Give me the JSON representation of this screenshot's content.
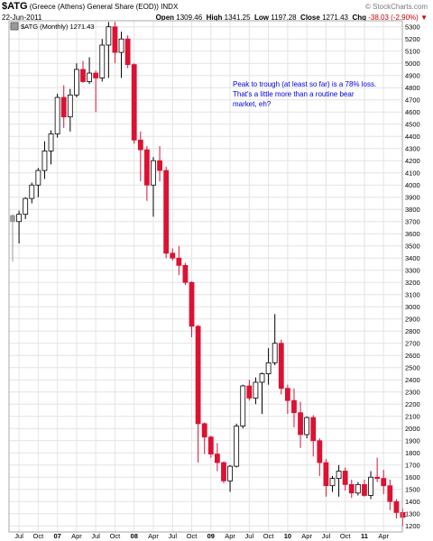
{
  "header": {
    "symbol": "$ATG",
    "name": "(Greece (Athens) General Share (EOD))",
    "exchange": "INDX",
    "date": "22-Jun-2011",
    "brand": "© StockCharts.com",
    "open_label": "Open",
    "open": "1309.46",
    "high_label": "High",
    "high": "1341.25",
    "low_label": "Low",
    "low": "1197.28",
    "close_label": "Close",
    "close": "1271.43",
    "chg_label": "Chg",
    "chg": "-38.03 (-2.90%)"
  },
  "legend": {
    "text": "$ATG (Monthly) 1271.43"
  },
  "annotation": {
    "lines": [
      "Peak to trough (at least so far) is a 78% loss.",
      "That's a little more than a routine bear",
      "market, eh?"
    ]
  },
  "chart_data": {
    "type": "candlestick",
    "title": "$ATG (Monthly) 1271.43",
    "ylim": [
      1150,
      5350
    ],
    "y_ticks": [
      1200,
      1300,
      1400,
      1500,
      1600,
      1700,
      1800,
      1900,
      2000,
      2100,
      2200,
      2300,
      2400,
      2500,
      2600,
      2700,
      2800,
      2900,
      3000,
      3100,
      3200,
      3300,
      3400,
      3500,
      3600,
      3700,
      3800,
      3900,
      4000,
      4100,
      4200,
      4300,
      4400,
      4500,
      4600,
      4700,
      4800,
      4900,
      5000,
      5100,
      5200,
      5300
    ],
    "x_ticks": [
      {
        "i": 1,
        "label": "Jul",
        "bold": false
      },
      {
        "i": 4,
        "label": "Oct",
        "bold": false
      },
      {
        "i": 7,
        "label": "07",
        "bold": true
      },
      {
        "i": 10,
        "label": "Apr",
        "bold": false
      },
      {
        "i": 13,
        "label": "Jul",
        "bold": false
      },
      {
        "i": 16,
        "label": "Oct",
        "bold": false
      },
      {
        "i": 19,
        "label": "08",
        "bold": true
      },
      {
        "i": 22,
        "label": "Apr",
        "bold": false
      },
      {
        "i": 25,
        "label": "Jul",
        "bold": false
      },
      {
        "i": 28,
        "label": "Oct",
        "bold": false
      },
      {
        "i": 31,
        "label": "09",
        "bold": true
      },
      {
        "i": 34,
        "label": "Apr",
        "bold": false
      },
      {
        "i": 37,
        "label": "Jul",
        "bold": false
      },
      {
        "i": 40,
        "label": "Oct",
        "bold": false
      },
      {
        "i": 43,
        "label": "10",
        "bold": true
      },
      {
        "i": 46,
        "label": "Apr",
        "bold": false
      },
      {
        "i": 49,
        "label": "Jul",
        "bold": false
      },
      {
        "i": 52,
        "label": "Oct",
        "bold": false
      },
      {
        "i": 55,
        "label": "11",
        "bold": true
      },
      {
        "i": 58,
        "label": "Apr",
        "bold": false
      }
    ],
    "candles": [
      {
        "o": 3750,
        "h": 3760,
        "l": 3370,
        "c": 3700,
        "dir": "gray"
      },
      {
        "o": 3700,
        "h": 3790,
        "l": 3520,
        "c": 3760,
        "dir": "up"
      },
      {
        "o": 3760,
        "h": 3900,
        "l": 3720,
        "c": 3890,
        "dir": "up"
      },
      {
        "o": 3890,
        "h": 4020,
        "l": 3850,
        "c": 4000,
        "dir": "up"
      },
      {
        "o": 4000,
        "h": 4140,
        "l": 3900,
        "c": 4120,
        "dir": "up"
      },
      {
        "o": 4120,
        "h": 4360,
        "l": 4050,
        "c": 4280,
        "dir": "up"
      },
      {
        "o": 4280,
        "h": 4450,
        "l": 4170,
        "c": 4420,
        "dir": "up"
      },
      {
        "o": 4420,
        "h": 4750,
        "l": 4390,
        "c": 4720,
        "dir": "up"
      },
      {
        "o": 4720,
        "h": 4820,
        "l": 4470,
        "c": 4560,
        "dir": "down"
      },
      {
        "o": 4560,
        "h": 4790,
        "l": 4440,
        "c": 4740,
        "dir": "up"
      },
      {
        "o": 4740,
        "h": 5000,
        "l": 4720,
        "c": 4950,
        "dir": "up"
      },
      {
        "o": 4950,
        "h": 5020,
        "l": 4840,
        "c": 4850,
        "dir": "down"
      },
      {
        "o": 4850,
        "h": 5050,
        "l": 4830,
        "c": 4920,
        "dir": "up"
      },
      {
        "o": 4920,
        "h": 4940,
        "l": 4600,
        "c": 4880,
        "dir": "down"
      },
      {
        "o": 4880,
        "h": 5200,
        "l": 4850,
        "c": 5150,
        "dir": "up"
      },
      {
        "o": 5150,
        "h": 5340,
        "l": 4880,
        "c": 5300,
        "dir": "up"
      },
      {
        "o": 5300,
        "h": 5340,
        "l": 5000,
        "c": 5090,
        "dir": "down"
      },
      {
        "o": 5090,
        "h": 5260,
        "l": 4880,
        "c": 5200,
        "dir": "up"
      },
      {
        "o": 5200,
        "h": 5230,
        "l": 4960,
        "c": 4990,
        "dir": "down"
      },
      {
        "o": 4990,
        "h": 5000,
        "l": 4340,
        "c": 4370,
        "dir": "down"
      },
      {
        "o": 4370,
        "h": 4440,
        "l": 4030,
        "c": 4290,
        "dir": "down"
      },
      {
        "o": 4290,
        "h": 4320,
        "l": 3870,
        "c": 4000,
        "dir": "down"
      },
      {
        "o": 4000,
        "h": 4230,
        "l": 3740,
        "c": 4200,
        "dir": "up"
      },
      {
        "o": 4200,
        "h": 4320,
        "l": 4030,
        "c": 4120,
        "dir": "down"
      },
      {
        "o": 4120,
        "h": 4150,
        "l": 3400,
        "c": 3440,
        "dir": "down"
      },
      {
        "o": 3440,
        "h": 3480,
        "l": 3380,
        "c": 3400,
        "dir": "down"
      },
      {
        "o": 3400,
        "h": 3500,
        "l": 3260,
        "c": 3340,
        "dir": "down"
      },
      {
        "o": 3340,
        "h": 3360,
        "l": 3180,
        "c": 3200,
        "dir": "down"
      },
      {
        "o": 3200,
        "h": 3210,
        "l": 2750,
        "c": 2840,
        "dir": "down"
      },
      {
        "o": 2840,
        "h": 2850,
        "l": 1720,
        "c": 2040,
        "dir": "down"
      },
      {
        "o": 2040,
        "h": 2050,
        "l": 1790,
        "c": 1930,
        "dir": "down"
      },
      {
        "o": 1930,
        "h": 1940,
        "l": 1760,
        "c": 1790,
        "dir": "down"
      },
      {
        "o": 1790,
        "h": 1880,
        "l": 1650,
        "c": 1720,
        "dir": "down"
      },
      {
        "o": 1720,
        "h": 1730,
        "l": 1550,
        "c": 1570,
        "dir": "down"
      },
      {
        "o": 1570,
        "h": 1700,
        "l": 1480,
        "c": 1690,
        "dir": "up"
      },
      {
        "o": 1690,
        "h": 2040,
        "l": 1680,
        "c": 2020,
        "dir": "up"
      },
      {
        "o": 2020,
        "h": 2360,
        "l": 2000,
        "c": 2350,
        "dir": "up"
      },
      {
        "o": 2350,
        "h": 2400,
        "l": 2230,
        "c": 2250,
        "dir": "down"
      },
      {
        "o": 2250,
        "h": 2420,
        "l": 2200,
        "c": 2380,
        "dir": "up"
      },
      {
        "o": 2380,
        "h": 2460,
        "l": 2120,
        "c": 2450,
        "dir": "up"
      },
      {
        "o": 2450,
        "h": 2660,
        "l": 2360,
        "c": 2540,
        "dir": "up"
      },
      {
        "o": 2540,
        "h": 2940,
        "l": 2520,
        "c": 2700,
        "dir": "up"
      },
      {
        "o": 2700,
        "h": 2730,
        "l": 2280,
        "c": 2330,
        "dir": "down"
      },
      {
        "o": 2330,
        "h": 2360,
        "l": 2120,
        "c": 2230,
        "dir": "down"
      },
      {
        "o": 2230,
        "h": 2330,
        "l": 2010,
        "c": 2130,
        "dir": "down"
      },
      {
        "o": 2130,
        "h": 2220,
        "l": 1840,
        "c": 1950,
        "dir": "down"
      },
      {
        "o": 1950,
        "h": 2100,
        "l": 1920,
        "c": 2090,
        "dir": "up"
      },
      {
        "o": 2090,
        "h": 2110,
        "l": 1770,
        "c": 1900,
        "dir": "down"
      },
      {
        "o": 1900,
        "h": 1920,
        "l": 1610,
        "c": 1720,
        "dir": "down"
      },
      {
        "o": 1720,
        "h": 1750,
        "l": 1440,
        "c": 1530,
        "dir": "down"
      },
      {
        "o": 1530,
        "h": 1610,
        "l": 1480,
        "c": 1590,
        "dir": "up"
      },
      {
        "o": 1590,
        "h": 1700,
        "l": 1440,
        "c": 1650,
        "dir": "up"
      },
      {
        "o": 1650,
        "h": 1680,
        "l": 1490,
        "c": 1540,
        "dir": "down"
      },
      {
        "o": 1540,
        "h": 1580,
        "l": 1430,
        "c": 1470,
        "dir": "down"
      },
      {
        "o": 1470,
        "h": 1560,
        "l": 1450,
        "c": 1540,
        "dir": "up"
      },
      {
        "o": 1540,
        "h": 1580,
        "l": 1440,
        "c": 1450,
        "dir": "down"
      },
      {
        "o": 1450,
        "h": 1650,
        "l": 1420,
        "c": 1600,
        "dir": "up"
      },
      {
        "o": 1600,
        "h": 1760,
        "l": 1560,
        "c": 1590,
        "dir": "down"
      },
      {
        "o": 1590,
        "h": 1660,
        "l": 1460,
        "c": 1530,
        "dir": "down"
      },
      {
        "o": 1530,
        "h": 1580,
        "l": 1330,
        "c": 1400,
        "dir": "down"
      },
      {
        "o": 1400,
        "h": 1420,
        "l": 1260,
        "c": 1310,
        "dir": "down"
      },
      {
        "o": 1310,
        "h": 1341,
        "l": 1197,
        "c": 1271,
        "dir": "down"
      }
    ]
  },
  "colors": {
    "up_fill": "#ffffff",
    "up_stroke": "#000000",
    "down": "#dd1133",
    "gray": "#9a9a9a",
    "grid": "#e4e4e4",
    "frame": "#aaaaaa",
    "annotation": "#0000dd",
    "chg": "#cc0000",
    "brand": "#7a7a7a"
  }
}
